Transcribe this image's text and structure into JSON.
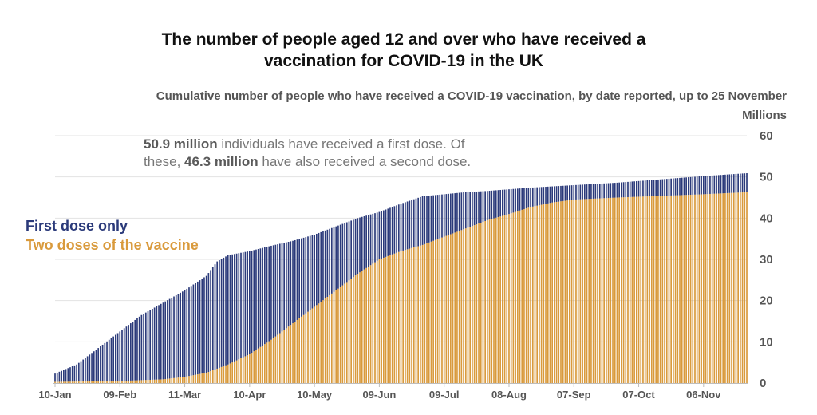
{
  "chart_data": {
    "type": "bar",
    "stacked": true,
    "title_lines": [
      "The number of people aged 12 and over who have received a",
      "vaccination for COVID-19 in the UK"
    ],
    "subtitle": "Cumulative number of people who have received a COVID-19 vaccination, by date reported, up to 25 November",
    "ylabel": "Millions",
    "ylim": [
      0,
      60
    ],
    "yticks": [
      0,
      10,
      20,
      30,
      40,
      50,
      60
    ],
    "x_tick_labels": [
      "10-Jan",
      "09-Feb",
      "11-Mar",
      "10-Apr",
      "10-May",
      "09-Jun",
      "09-Jul",
      "08-Aug",
      "07-Sep",
      "07-Oct",
      "06-Nov"
    ],
    "x_range_days": [
      0,
      320
    ],
    "x_tick_days": [
      0,
      30,
      60,
      90,
      120,
      150,
      180,
      210,
      240,
      270,
      300
    ],
    "annotation": {
      "first_value": "50.9 million",
      "first_text": " individuals have received a first dose. Of these, ",
      "second_value": "46.3 million",
      "second_text": " have also received a second dose."
    },
    "series": [
      {
        "name": "First dose only",
        "role": "first_dose_total",
        "color": "#2b3a7a",
        "keypoints_day": [
          0,
          10,
          20,
          30,
          40,
          50,
          60,
          70,
          75,
          80,
          90,
          100,
          110,
          120,
          130,
          140,
          150,
          160,
          170,
          180,
          190,
          200,
          210,
          220,
          240,
          260,
          280,
          300,
          320
        ],
        "keypoints_value": [
          2.3,
          4.5,
          8.5,
          12.5,
          16.5,
          19.5,
          22.5,
          26,
          29.5,
          31,
          32,
          33.3,
          34.5,
          36,
          38,
          40,
          41.5,
          43.5,
          45.3,
          45.8,
          46.3,
          46.6,
          47,
          47.4,
          48,
          48.6,
          49.4,
          50.2,
          50.9
        ]
      },
      {
        "name": "Two doses of the vaccine",
        "role": "second_dose_total",
        "color": "#d99a3c",
        "keypoints_day": [
          0,
          30,
          50,
          60,
          70,
          80,
          90,
          100,
          110,
          120,
          130,
          140,
          150,
          160,
          170,
          180,
          190,
          200,
          210,
          220,
          230,
          240,
          260,
          280,
          300,
          320
        ],
        "keypoints_value": [
          0.3,
          0.5,
          0.9,
          1.5,
          2.5,
          4.5,
          7,
          10.5,
          14.5,
          18.5,
          22.5,
          26.5,
          30,
          32,
          33.5,
          35.5,
          37.5,
          39.5,
          41,
          42.7,
          43.8,
          44.5,
          45,
          45.4,
          45.8,
          46.3
        ]
      }
    ],
    "final_values": {
      "first_dose": 50.9,
      "second_dose": 46.3
    }
  }
}
